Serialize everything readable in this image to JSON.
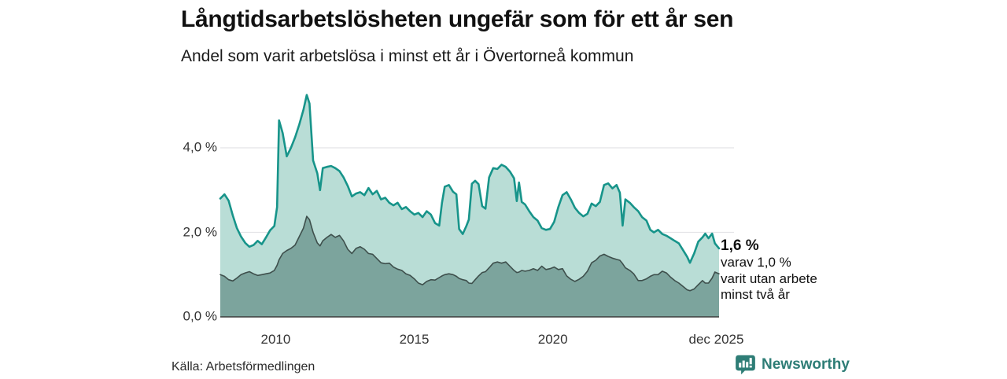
{
  "header": {
    "title": "Långtidsarbetslösheten ungefär som för ett år sen",
    "subtitle": "Andel som varit arbetslösa i minst ett år i Övertorneå kommun"
  },
  "footer": {
    "source": "Källa: Arbetsförmedlingen",
    "brand": "Newsworthy"
  },
  "colors": {
    "accent_teal": "#17948a",
    "light_fill": "#b9ddd6",
    "dark_fill": "#7ca49d",
    "dark_line": "#3e4f4c",
    "gridline": "#e4e4e8",
    "baseline": "#3d3d3d",
    "axis_text": "#333333",
    "brand_teal": "#2e7d76"
  },
  "chart_data": {
    "type": "area",
    "title": "Långtidsarbetslösheten ungefär som för ett år sen",
    "subtitle": "Andel som varit arbetslösa i minst ett år i Övertorneå kommun",
    "unit": "%",
    "x_domain": [
      2008,
      2026
    ],
    "y_domain": [
      0,
      5.45
    ],
    "grid": true,
    "gridline_values": [
      2,
      4
    ],
    "x_ticks": [
      {
        "value": 2010,
        "label": "2010"
      },
      {
        "value": 2015,
        "label": "2015"
      },
      {
        "value": 2020,
        "label": "2020"
      },
      {
        "value": 2025.9,
        "label": "dec 2025"
      }
    ],
    "y_ticks": [
      {
        "value": 0,
        "label": "0,0 %"
      },
      {
        "value": 2,
        "label": "2,0 %"
      },
      {
        "value": 4,
        "label": "4,0 %"
      }
    ],
    "x": [
      2008.0,
      2008.15,
      2008.3,
      2008.45,
      2008.6,
      2008.75,
      2008.9,
      2009.05,
      2009.2,
      2009.35,
      2009.5,
      2009.65,
      2009.8,
      2009.95,
      2010.05,
      2010.12,
      2010.25,
      2010.4,
      2010.55,
      2010.7,
      2010.85,
      2011.0,
      2011.12,
      2011.22,
      2011.35,
      2011.5,
      2011.6,
      2011.7,
      2011.85,
      2012.0,
      2012.15,
      2012.3,
      2012.45,
      2012.6,
      2012.75,
      2012.9,
      2013.05,
      2013.2,
      2013.35,
      2013.5,
      2013.65,
      2013.8,
      2013.95,
      2014.1,
      2014.25,
      2014.4,
      2014.55,
      2014.7,
      2014.85,
      2015.0,
      2015.15,
      2015.3,
      2015.45,
      2015.6,
      2015.75,
      2015.9,
      2016.0,
      2016.1,
      2016.25,
      2016.4,
      2016.52,
      2016.62,
      2016.75,
      2016.88,
      2016.97,
      2017.08,
      2017.2,
      2017.32,
      2017.45,
      2017.57,
      2017.7,
      2017.85,
      2018.0,
      2018.15,
      2018.3,
      2018.45,
      2018.6,
      2018.7,
      2018.78,
      2018.88,
      2019.0,
      2019.15,
      2019.3,
      2019.45,
      2019.6,
      2019.75,
      2019.9,
      2020.05,
      2020.2,
      2020.35,
      2020.5,
      2020.65,
      2020.8,
      2020.95,
      2021.1,
      2021.25,
      2021.4,
      2021.55,
      2021.7,
      2021.85,
      2022.0,
      2022.15,
      2022.3,
      2022.42,
      2022.52,
      2022.62,
      2022.78,
      2022.92,
      2023.08,
      2023.22,
      2023.38,
      2023.52,
      2023.65,
      2023.8,
      2023.95,
      2024.1,
      2024.25,
      2024.4,
      2024.55,
      2024.7,
      2024.85,
      2024.95,
      2025.1,
      2025.25,
      2025.4,
      2025.5,
      2025.62,
      2025.75,
      2025.85,
      2026.0
    ],
    "series": [
      {
        "name": "Arbetslösa minst ett år",
        "slug": "unemployed-one-year",
        "color": "#17948a",
        "fill": "#b9ddd6",
        "stroke_width": 2.6,
        "values": [
          2.8,
          2.9,
          2.75,
          2.4,
          2.1,
          1.9,
          1.75,
          1.66,
          1.7,
          1.8,
          1.72,
          1.88,
          2.05,
          2.15,
          2.6,
          4.65,
          4.35,
          3.8,
          4.0,
          4.25,
          4.55,
          4.9,
          5.25,
          5.05,
          3.7,
          3.4,
          3.0,
          3.52,
          3.55,
          3.57,
          3.52,
          3.45,
          3.3,
          3.1,
          2.85,
          2.92,
          2.95,
          2.88,
          3.05,
          2.9,
          2.98,
          2.78,
          2.82,
          2.7,
          2.64,
          2.7,
          2.55,
          2.6,
          2.5,
          2.42,
          2.46,
          2.36,
          2.5,
          2.42,
          2.22,
          2.16,
          2.7,
          3.08,
          3.12,
          2.96,
          2.9,
          2.08,
          1.96,
          2.15,
          2.3,
          3.15,
          3.22,
          3.14,
          2.62,
          2.56,
          3.3,
          3.52,
          3.5,
          3.6,
          3.55,
          3.44,
          3.28,
          2.74,
          3.18,
          2.72,
          2.66,
          2.5,
          2.36,
          2.28,
          2.1,
          2.06,
          2.08,
          2.25,
          2.6,
          2.88,
          2.95,
          2.78,
          2.58,
          2.46,
          2.38,
          2.44,
          2.68,
          2.62,
          2.72,
          3.12,
          3.16,
          3.04,
          3.12,
          2.94,
          2.16,
          2.78,
          2.7,
          2.6,
          2.5,
          2.36,
          2.28,
          2.06,
          2.0,
          2.06,
          1.96,
          1.92,
          1.86,
          1.8,
          1.74,
          1.58,
          1.42,
          1.28,
          1.5,
          1.78,
          1.88,
          1.97,
          1.86,
          1.97,
          1.74,
          1.62
        ]
      },
      {
        "name": "Utan arbete minst två år",
        "slug": "unemployed-two-years",
        "color": "#3e4f4c",
        "fill": "#7ca49d",
        "stroke_width": 1.6,
        "values": [
          1.0,
          0.96,
          0.88,
          0.85,
          0.92,
          1.0,
          1.04,
          1.07,
          1.02,
          0.98,
          1.0,
          1.02,
          1.04,
          1.1,
          1.22,
          1.35,
          1.5,
          1.57,
          1.62,
          1.7,
          1.9,
          2.1,
          2.38,
          2.3,
          2.0,
          1.75,
          1.68,
          1.8,
          1.88,
          1.95,
          1.88,
          1.93,
          1.8,
          1.6,
          1.5,
          1.62,
          1.66,
          1.6,
          1.5,
          1.48,
          1.38,
          1.28,
          1.26,
          1.27,
          1.18,
          1.13,
          1.1,
          1.02,
          0.98,
          0.9,
          0.8,
          0.76,
          0.84,
          0.88,
          0.87,
          0.93,
          0.97,
          1.0,
          1.02,
          1.0,
          0.96,
          0.91,
          0.88,
          0.86,
          0.8,
          0.79,
          0.88,
          0.97,
          1.05,
          1.07,
          1.16,
          1.27,
          1.3,
          1.27,
          1.3,
          1.2,
          1.1,
          1.05,
          1.06,
          1.1,
          1.08,
          1.1,
          1.14,
          1.1,
          1.2,
          1.12,
          1.14,
          1.18,
          1.12,
          1.14,
          0.97,
          0.89,
          0.84,
          0.89,
          0.96,
          1.08,
          1.28,
          1.34,
          1.44,
          1.48,
          1.43,
          1.39,
          1.36,
          1.34,
          1.26,
          1.16,
          1.1,
          1.02,
          0.86,
          0.86,
          0.9,
          0.96,
          1.0,
          1.0,
          1.08,
          1.04,
          0.94,
          0.86,
          0.8,
          0.72,
          0.64,
          0.62,
          0.66,
          0.76,
          0.86,
          0.8,
          0.8,
          0.92,
          1.06,
          1.02
        ]
      }
    ],
    "annotation": {
      "value_label": "1,6 %",
      "lines": [
        "varav 1,0 %",
        "varit utan arbete",
        "minst två år"
      ]
    }
  }
}
